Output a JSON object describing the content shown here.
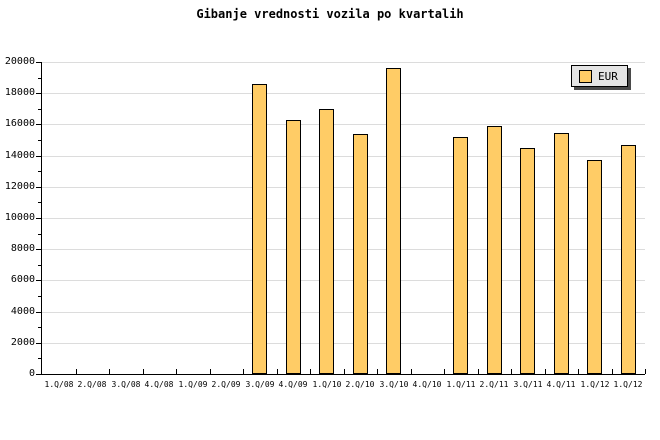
{
  "title": "Gibanje vrednosti vozila po kvartalih",
  "legend": {
    "label": "EUR"
  },
  "colors": {
    "bar_fill": "#FFCC66",
    "bar_border": "#000000",
    "gridline": "#DCDCDC",
    "axis": "#000000",
    "background": "#FFFFFF",
    "legend_bg": "#E4E4E4",
    "legend_shadow": "#4A4A4A",
    "text": "#000000"
  },
  "chart_data": {
    "type": "bar",
    "title": "Gibanje vrednosti vozila po kvartalih",
    "series_name": "EUR",
    "categories": [
      "1.Q/08",
      "2.Q/08",
      "3.Q/08",
      "4.Q/08",
      "1.Q/09",
      "2.Q/09",
      "3.Q/09",
      "4.Q/09",
      "1.Q/10",
      "2.Q/10",
      "3.Q/10",
      "4.Q/10",
      "1.Q/11",
      "2.Q/11",
      "3.Q/11",
      "4.Q/11",
      "1.Q/12",
      "1.Q/12"
    ],
    "values": [
      null,
      null,
      null,
      null,
      null,
      null,
      18600,
      16300,
      17000,
      15400,
      19600,
      null,
      15200,
      15900,
      14500,
      15450,
      13700,
      14700
    ],
    "ylim": [
      0,
      20000
    ],
    "yticks": [
      0,
      2000,
      4000,
      6000,
      8000,
      10000,
      12000,
      14000,
      16000,
      18000,
      20000
    ],
    "minor_ytick_step": 1000,
    "grid": "horizontal-major",
    "legend_position": "top-right"
  }
}
